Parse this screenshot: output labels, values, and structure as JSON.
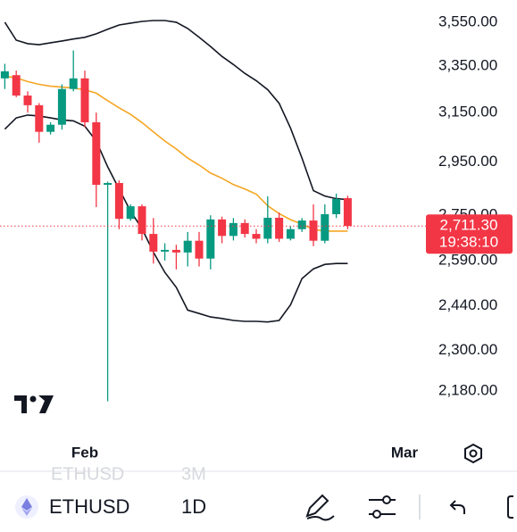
{
  "chart_data": {
    "type": "candlestick",
    "categories": [
      null,
      null,
      null,
      null,
      null,
      null,
      null,
      "Feb",
      null,
      null,
      null,
      null,
      null,
      null,
      null,
      null,
      null,
      null,
      null,
      null,
      null,
      null,
      null,
      null,
      null,
      null,
      null,
      null,
      null,
      null,
      null,
      null,
      null,
      null,
      null,
      "Mar"
    ],
    "open": [
      3296,
      3310,
      3222,
      3181,
      3071,
      3100,
      3250,
      3296,
      3110,
      2863,
      2870,
      2737,
      2783,
      2683,
      2621,
      2627,
      2618,
      2659,
      2597,
      2735,
      2676,
      2722,
      2683,
      2666,
      2741,
      2666,
      2700,
      2731,
      2659,
      2754,
      2813,
      null,
      null,
      null,
      null,
      null
    ],
    "high": [
      3360,
      3330,
      3240,
      3190,
      3110,
      3270,
      3420,
      3330,
      3150,
      2875,
      2880,
      2790,
      2790,
      2740,
      2650,
      2645,
      2690,
      2690,
      2750,
      2745,
      2740,
      2735,
      2700,
      2820,
      2760,
      2710,
      2740,
      2790,
      2790,
      2830,
      2822,
      null,
      null,
      null,
      null,
      null
    ],
    "low": [
      3250,
      3215,
      3150,
      3027,
      3060,
      3080,
      3240,
      3090,
      2780,
      2150,
      2700,
      2730,
      2660,
      2580,
      2590,
      2560,
      2570,
      2570,
      2560,
      2650,
      2660,
      2670,
      2650,
      2650,
      2655,
      2660,
      2690,
      2640,
      2650,
      2740,
      2700,
      null,
      null,
      null,
      null,
      null
    ],
    "close": [
      3327,
      3222,
      3181,
      3071,
      3100,
      3250,
      3296,
      3110,
      2863,
      2870,
      2737,
      2783,
      2683,
      2621,
      2627,
      2618,
      2659,
      2597,
      2735,
      2676,
      2722,
      2683,
      2666,
      2741,
      2666,
      2700,
      2731,
      2659,
      2754,
      2810,
      2711.3,
      null,
      null,
      null,
      null,
      null
    ],
    "up_color": "#089981",
    "down_color": "#f23645",
    "overlays": [
      {
        "color": "#131722",
        "values": [
          3550,
          3467,
          3451,
          3446,
          3455,
          3463,
          3472,
          3480,
          3496,
          3517,
          3537,
          3546,
          3554,
          3558,
          3558,
          3550,
          3521,
          3480,
          3438,
          3393,
          3357,
          3318,
          3286,
          3247,
          3189,
          3086,
          2966,
          2841,
          2821,
          2811,
          2808,
          null,
          null,
          null,
          null,
          null
        ]
      },
      {
        "color": "#f5a623",
        "values": [
          3306,
          3298,
          3282,
          3270,
          3262,
          3258,
          3254,
          3247,
          3232,
          3200,
          3170,
          3143,
          3109,
          3071,
          3034,
          3002,
          2966,
          2939,
          2908,
          2888,
          2864,
          2847,
          2828,
          2785,
          2756,
          2734,
          2718,
          2699,
          2693,
          2693,
          2693,
          null,
          null,
          null,
          null,
          null
        ]
      },
      {
        "color": "#131722",
        "values": [
          3082,
          3128,
          3140,
          3136,
          3128,
          3120,
          3116,
          3094,
          3034,
          2932,
          2847,
          2765,
          2702,
          2619,
          2550,
          2500,
          2426,
          2415,
          2404,
          2399,
          2393,
          2390,
          2390,
          2388,
          2393,
          2443,
          2529,
          2562,
          2577,
          2580,
          2580,
          null,
          null,
          null,
          null,
          null
        ]
      }
    ],
    "yscale": "log",
    "ylim": [
      2050,
      3656
    ],
    "yticks": [
      {
        "value": 3550,
        "label": "3,550.00"
      },
      {
        "value": 3350,
        "label": "3,350.00"
      },
      {
        "value": 3150,
        "label": "3,150.00"
      },
      {
        "value": 2950,
        "label": "2,950.00"
      },
      {
        "value": 2750,
        "label": "2,750.00"
      },
      {
        "value": 2590,
        "label": "2,590.00"
      },
      {
        "value": 2440,
        "label": "2,440.00"
      },
      {
        "value": 2300,
        "label": "2,300.00"
      },
      {
        "value": 2180,
        "label": "2,180.00"
      }
    ],
    "last_price": {
      "value": 2711.3,
      "label": "2,711.30"
    },
    "countdown": "19:38:10",
    "last_price_color": "#f23645"
  },
  "toolbar": {
    "ghost_symbol": "ETHUSD",
    "ghost_interval": "3M",
    "symbol": "ETHUSD",
    "interval": "1D"
  }
}
